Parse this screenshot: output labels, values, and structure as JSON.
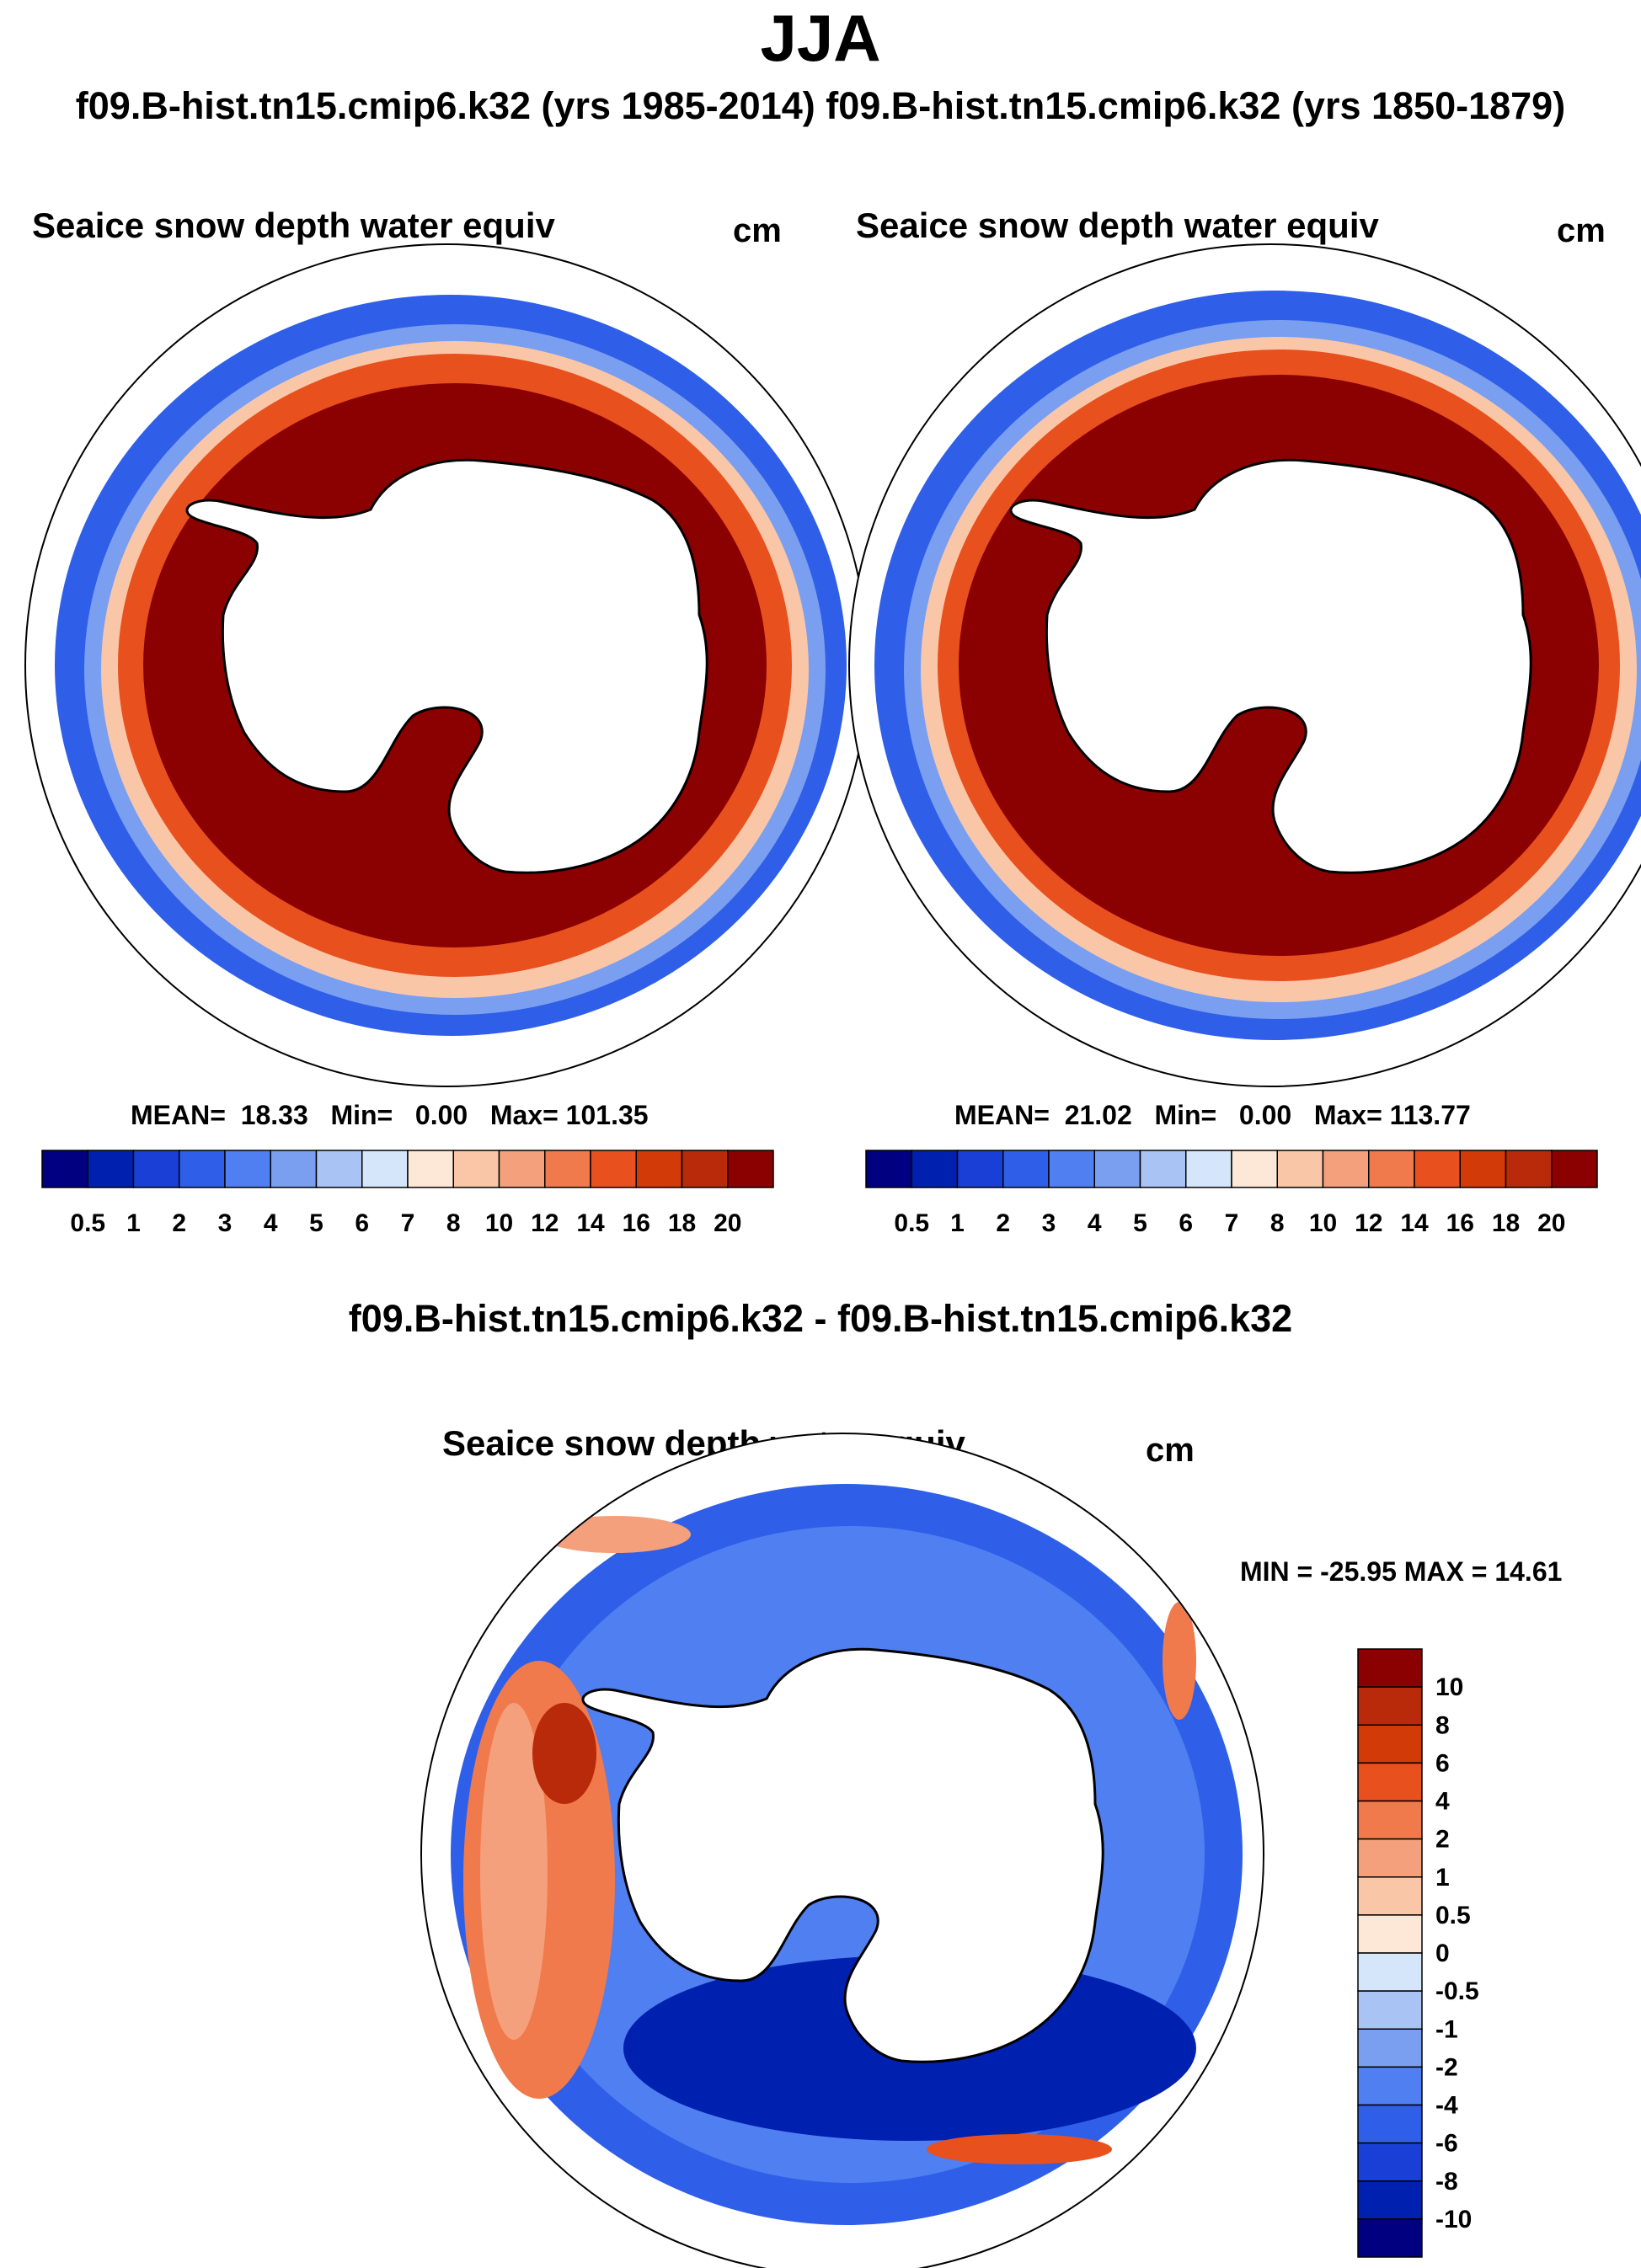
{
  "header": {
    "title": "JJA",
    "subtitle": "f09.B-hist.tn15.cmip6.k32 (yrs 1985-2014) f09.B-hist.tn15.cmip6.k32 (yrs 1850-1879)"
  },
  "panels": [
    {
      "title": "Seaice snow depth water equiv",
      "units": "cm",
      "mean_label": "MEAN=",
      "mean": "18.33",
      "min_label": "Min=",
      "min": "0.00",
      "max_label": "Max=",
      "max": "101.35"
    },
    {
      "title": "Seaice snow depth water equiv",
      "units": "cm",
      "mean_label": "MEAN=",
      "mean": "21.02",
      "min_label": "Min=",
      "min": "0.00",
      "max_label": "Max=",
      "max": "113.77"
    }
  ],
  "difference": {
    "header": "f09.B-hist.tn15.cmip6.k32 - f09.B-hist.tn15.cmip6.k32",
    "title": "Seaice snow depth water equiv",
    "units": "cm",
    "minmax_text": "MIN = -25.95 MAX =  14.61"
  },
  "colorbar_main": {
    "labels": [
      "0.5",
      "1",
      "2",
      "3",
      "4",
      "5",
      "6",
      "7",
      "8",
      "10",
      "12",
      "14",
      "16",
      "18",
      "20"
    ],
    "colors": [
      "#000080",
      "#0020b0",
      "#1a3fd6",
      "#2f5fe8",
      "#4f7ff0",
      "#7a9ff0",
      "#a9c4f4",
      "#d6e6fa",
      "#fde8d8",
      "#f9c7a8",
      "#f5a07c",
      "#f07a4c",
      "#e8501e",
      "#d23a08",
      "#b82a0a",
      "#8b0000"
    ]
  },
  "colorbar_diff": {
    "labels": [
      "10",
      "8",
      "6",
      "4",
      "2",
      "1",
      "0.5",
      "0",
      "-0.5",
      "-1",
      "-2",
      "-4",
      "-6",
      "-8",
      "-10"
    ],
    "colors": [
      "#8b0000",
      "#b82a0a",
      "#d23a08",
      "#e8501e",
      "#f07a4c",
      "#f5a07c",
      "#f9c7a8",
      "#fde8d8",
      "#d6e6fa",
      "#a9c4f4",
      "#7a9ff0",
      "#4f7ff0",
      "#2f5fe8",
      "#1a3fd6",
      "#0020b0",
      "#000080"
    ]
  },
  "map_legend": {
    "ocean": "#ffffff",
    "continent": "#ffffff",
    "coastline": "#000000"
  }
}
